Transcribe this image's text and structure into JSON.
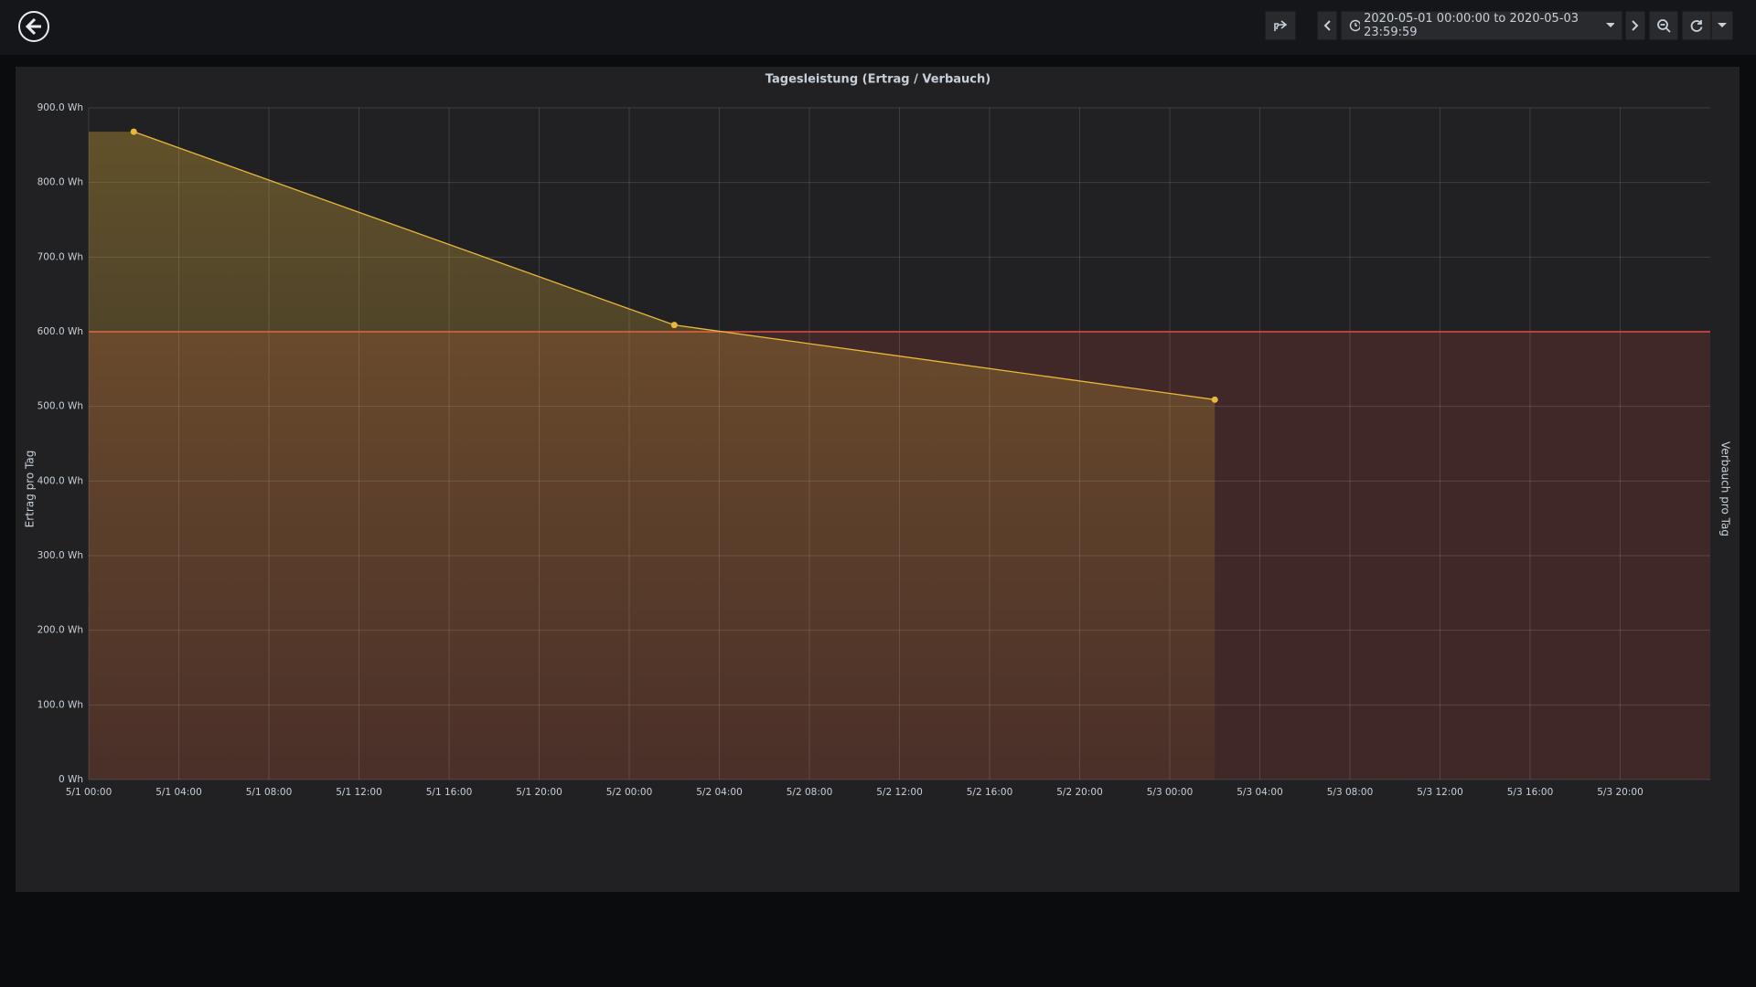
{
  "toolbar": {
    "time_range": "2020-05-01 00:00:00 to 2020-05-03 23:59:59"
  },
  "chart_data": {
    "type": "line",
    "title": "Tagesleistung (Ertrag / Verbauch)",
    "y_label": "Ertrag pro Tag",
    "y2_label": "Verbauch pro Tag",
    "x": [
      2,
      26,
      50
    ],
    "series": [
      {
        "color": "#eab839",
        "values": [
          868,
          609,
          509
        ]
      }
    ],
    "threshold": {
      "value": 600,
      "color": "#e24d42"
    },
    "xlim": [
      0,
      72
    ],
    "xticks": [
      {
        "value": 0,
        "label": "5/1 00:00"
      },
      {
        "value": 4,
        "label": "5/1 04:00"
      },
      {
        "value": 8,
        "label": "5/1 08:00"
      },
      {
        "value": 12,
        "label": "5/1 12:00"
      },
      {
        "value": 16,
        "label": "5/1 16:00"
      },
      {
        "value": 20,
        "label": "5/1 20:00"
      },
      {
        "value": 24,
        "label": "5/2 00:00"
      },
      {
        "value": 28,
        "label": "5/2 04:00"
      },
      {
        "value": 32,
        "label": "5/2 08:00"
      },
      {
        "value": 36,
        "label": "5/2 12:00"
      },
      {
        "value": 40,
        "label": "5/2 16:00"
      },
      {
        "value": 44,
        "label": "5/2 20:00"
      },
      {
        "value": 48,
        "label": "5/3 00:00"
      },
      {
        "value": 52,
        "label": "5/3 04:00"
      },
      {
        "value": 56,
        "label": "5/3 08:00"
      },
      {
        "value": 60,
        "label": "5/3 12:00"
      },
      {
        "value": 64,
        "label": "5/3 16:00"
      },
      {
        "value": 68,
        "label": "5/3 20:00"
      }
    ],
    "ylim": [
      0,
      900
    ],
    "yticks": [
      {
        "value": 0,
        "label": "0 Wh"
      },
      {
        "value": 100,
        "label": "100.0 Wh"
      },
      {
        "value": 200,
        "label": "200.0 Wh"
      },
      {
        "value": 300,
        "label": "300.0 Wh"
      },
      {
        "value": 400,
        "label": "400.0 Wh"
      },
      {
        "value": 500,
        "label": "500.0 Wh"
      },
      {
        "value": 600,
        "label": "600.0 Wh"
      },
      {
        "value": 700,
        "label": "700.0 Wh"
      },
      {
        "value": 800,
        "label": "800.0 Wh"
      },
      {
        "value": 900,
        "label": "900.0 Wh"
      }
    ],
    "grid": true
  }
}
